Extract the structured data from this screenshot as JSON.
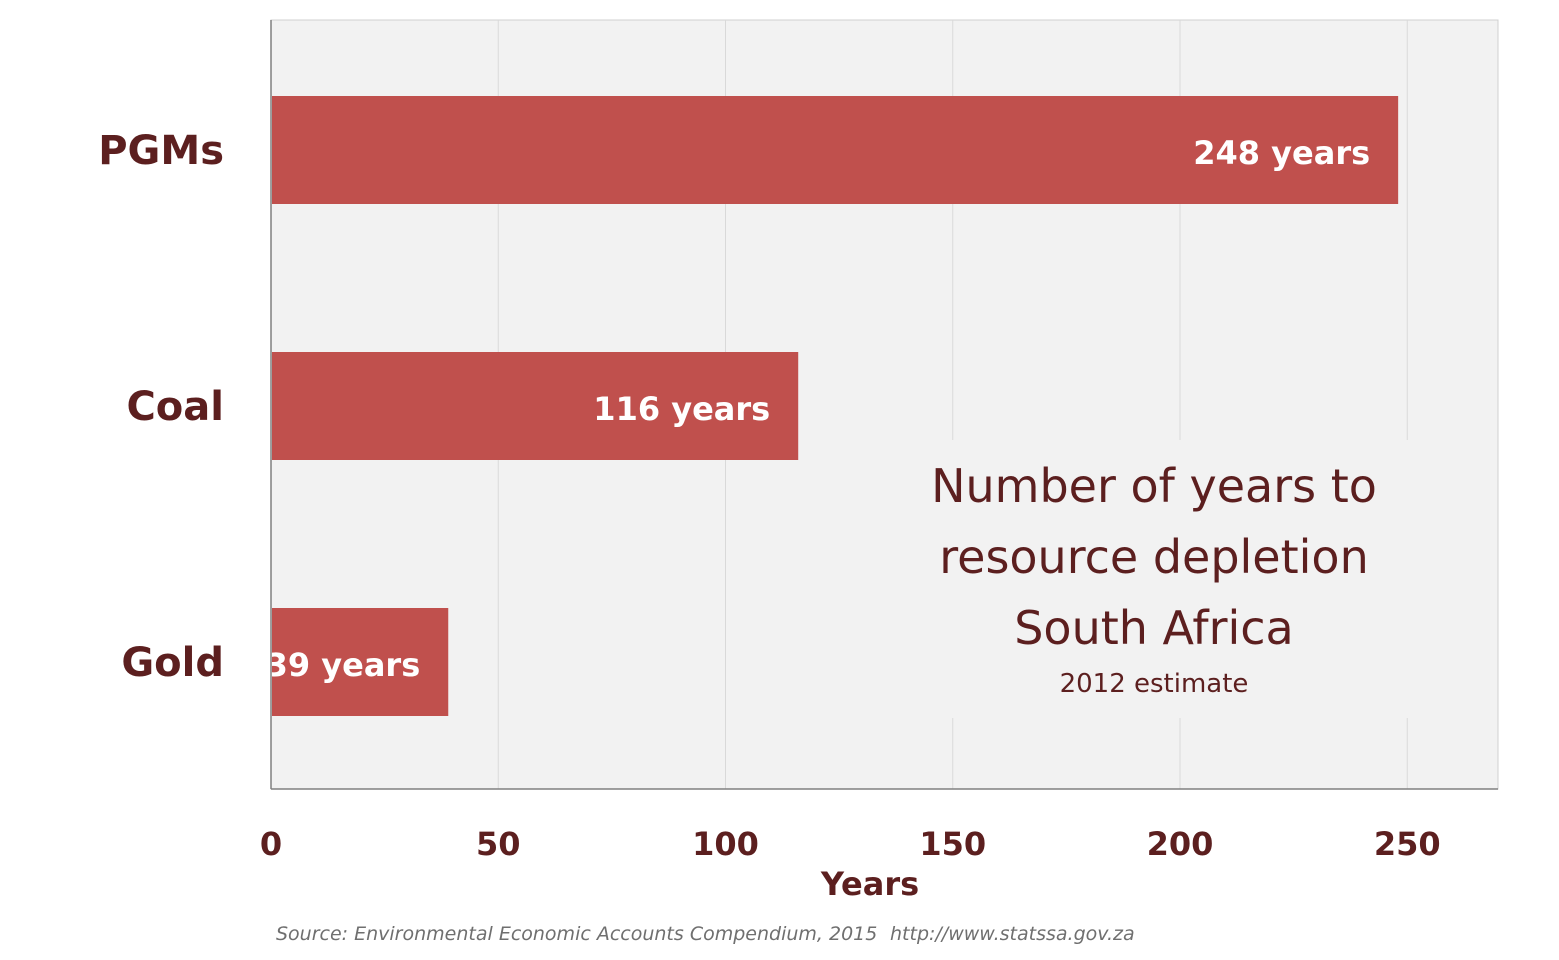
{
  "chart_data": {
    "type": "bar",
    "orientation": "horizontal",
    "categories": [
      "PGMs",
      "Coal",
      "Gold"
    ],
    "values": [
      248,
      116,
      39
    ],
    "data_labels": [
      "248 years",
      "116 years",
      "39 years"
    ],
    "bar_color": "#c0504d",
    "xlabel": "Years",
    "ylabel": "",
    "xlim": [
      0,
      270
    ],
    "xticks": [
      0,
      50,
      100,
      150,
      200,
      250
    ],
    "grid": true,
    "annotation": {
      "title_lines": [
        "Number of years to",
        "resource depletion",
        "South Africa"
      ],
      "subtitle": "2012 estimate"
    }
  },
  "footer": {
    "source": "Source: Environmental Economic Accounts Compendium, 2015",
    "url": "http://www.statssa.gov.za"
  },
  "colors": {
    "plot_background": "#f2f2f2",
    "gridline": "#d9d9d9",
    "label_text": "#5c1f1f",
    "source_text": "#6f6f6f"
  }
}
